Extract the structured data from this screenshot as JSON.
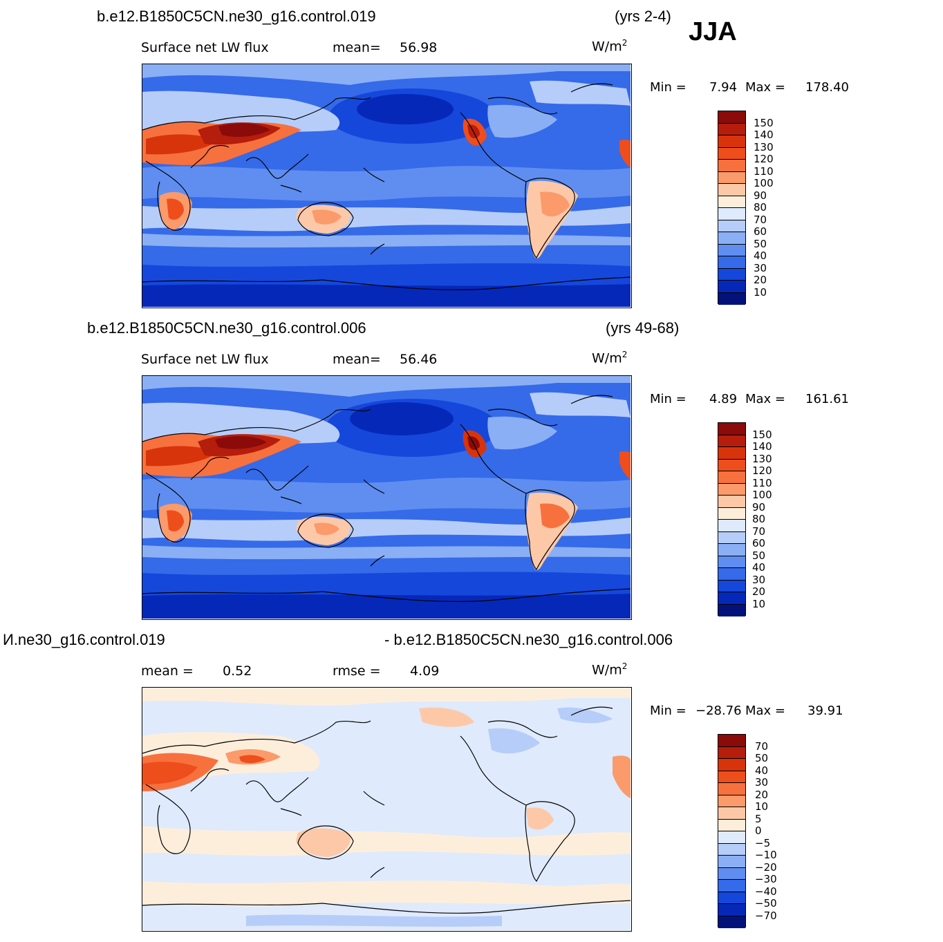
{
  "season": "JJA",
  "panels": [
    {
      "case_left": "b.e12.B1850C5CN.ne30_g16.control.019",
      "case_right": "(yrs 2-4)",
      "field": "Surface  net  LW  flux",
      "stat1_label": "mean=",
      "stat1_value": "56.98",
      "stat2_label": "",
      "stat2_value": "",
      "units": "W/m",
      "units_exp": "2",
      "min_label": "Min  =",
      "min_value": "7.94",
      "max_label": "Max  =",
      "max_value": "178.40",
      "colorbar": {
        "labels": [
          "150",
          "140",
          "130",
          "120",
          "110",
          "100",
          "90",
          "80",
          "70",
          "60",
          "50",
          "40",
          "30",
          "20",
          "10"
        ],
        "colors": [
          "#8b0a0a",
          "#b51d0c",
          "#d8340c",
          "#ee4e1b",
          "#f7713e",
          "#fb9a6b",
          "#fdc8a8",
          "#fdeedc",
          "#dfeafc",
          "#b6cdf9",
          "#8aaff4",
          "#5f8ef0",
          "#356ae9",
          "#1547db",
          "#0628b8",
          "#03127a"
        ]
      }
    },
    {
      "case_left": "b.e12.B1850C5CN.ne30_g16.control.006",
      "case_right": "(yrs 49-68)",
      "field": "Surface  net  LW  flux",
      "stat1_label": "mean=",
      "stat1_value": "56.46",
      "stat2_label": "",
      "stat2_value": "",
      "units": "W/m",
      "units_exp": "2",
      "min_label": "Min  =",
      "min_value": "4.89",
      "max_label": "Max  =",
      "max_value": "161.61",
      "colorbar": {
        "labels": [
          "150",
          "140",
          "130",
          "120",
          "110",
          "100",
          "90",
          "80",
          "70",
          "60",
          "50",
          "40",
          "30",
          "20",
          "10"
        ],
        "colors": [
          "#8b0a0a",
          "#b51d0c",
          "#d8340c",
          "#ee4e1b",
          "#f7713e",
          "#fb9a6b",
          "#fdc8a8",
          "#fdeedc",
          "#dfeafc",
          "#b6cdf9",
          "#8aaff4",
          "#5f8ef0",
          "#356ae9",
          "#1547db",
          "#0628b8",
          "#03127a"
        ]
      }
    },
    {
      "case_left": "И.ne30_g16.control.019",
      "case_right": "- b.e12.B1850C5CN.ne30_g16.control.006",
      "field": "",
      "stat1_label": "mean  =",
      "stat1_value": "0.52",
      "stat2_label": "rmse  =",
      "stat2_value": "4.09",
      "units": "W/m",
      "units_exp": "2",
      "min_label": "Min  =",
      "min_value": "−28.76",
      "max_label": "Max  =",
      "max_value": "39.91",
      "colorbar": {
        "labels": [
          "70",
          "50",
          "40",
          "30",
          "20",
          "10",
          "5",
          "0",
          "−5",
          "−10",
          "−20",
          "−30",
          "−40",
          "−50",
          "−70"
        ],
        "colors": [
          "#8b0a0a",
          "#b51d0c",
          "#d8340c",
          "#ee4e1b",
          "#f7713e",
          "#fb9a6b",
          "#fdc8a8",
          "#fdeedc",
          "#dfeafc",
          "#b6cdf9",
          "#8aaff4",
          "#5f8ef0",
          "#356ae9",
          "#1547db",
          "#0628b8",
          "#03127a"
        ]
      }
    }
  ]
}
